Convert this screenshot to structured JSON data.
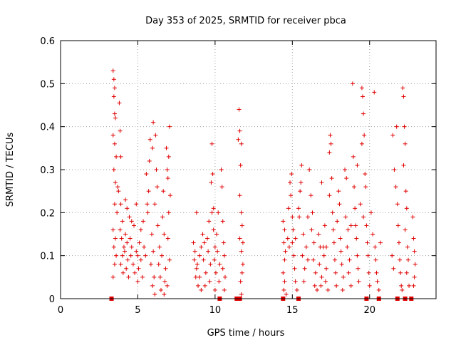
{
  "chart_data": {
    "type": "scatter",
    "title": "Day 353 of 2025, SRMTID for receiver pbca",
    "xlabel": "GPS time / hours",
    "ylabel": "SRMTID / TECUs",
    "xlim": [
      0,
      24.3
    ],
    "ylim": [
      0,
      0.6
    ],
    "x_ticks": [
      0,
      5,
      10,
      15,
      20
    ],
    "y_ticks": [
      0,
      0.1,
      0.2,
      0.3,
      0.4,
      0.5,
      0.6
    ],
    "x_tick_labels": [
      "0",
      "5",
      "10",
      "15",
      "20"
    ],
    "y_tick_labels": [
      "0",
      "0.1",
      "0.2",
      "0.3",
      "0.4",
      "0.5",
      "0.6"
    ],
    "grid": true,
    "legend": "none",
    "marker": "plus",
    "color": "#e00000",
    "series": [
      {
        "points": [
          [
            3.4,
            0.53
          ],
          [
            3.45,
            0.51
          ],
          [
            3.5,
            0.49
          ],
          [
            3.45,
            0.47
          ],
          [
            3.5,
            0.43
          ],
          [
            3.55,
            0.42
          ],
          [
            3.4,
            0.38
          ],
          [
            3.5,
            0.36
          ],
          [
            3.6,
            0.33
          ],
          [
            3.45,
            0.3
          ],
          [
            3.55,
            0.27
          ],
          [
            3.7,
            0.26
          ],
          [
            3.5,
            0.22
          ],
          [
            3.65,
            0.2
          ],
          [
            3.4,
            0.16
          ],
          [
            3.55,
            0.14
          ],
          [
            3.45,
            0.12
          ],
          [
            3.6,
            0.1
          ],
          [
            3.5,
            0.08
          ],
          [
            3.4,
            0.05
          ],
          [
            3.8,
            0.455
          ],
          [
            3.85,
            0.39
          ],
          [
            3.9,
            0.33
          ],
          [
            3.75,
            0.25
          ],
          [
            3.9,
            0.22
          ],
          [
            4.0,
            0.18
          ],
          [
            3.85,
            0.16
          ],
          [
            3.95,
            0.14
          ],
          [
            4.1,
            0.12
          ],
          [
            4.0,
            0.1
          ],
          [
            3.9,
            0.08
          ],
          [
            4.05,
            0.06
          ],
          [
            4.2,
            0.15
          ],
          [
            4.3,
            0.13
          ],
          [
            4.15,
            0.11
          ],
          [
            4.35,
            0.09
          ],
          [
            4.25,
            0.07
          ],
          [
            4.4,
            0.05
          ],
          [
            4.5,
            0.14
          ],
          [
            4.6,
            0.12
          ],
          [
            4.55,
            0.1
          ],
          [
            4.7,
            0.08
          ],
          [
            4.45,
            0.19
          ],
          [
            4.8,
            0.06
          ],
          [
            4.9,
            0.11
          ],
          [
            5.0,
            0.1
          ],
          [
            4.75,
            0.17
          ],
          [
            5.1,
            0.13
          ],
          [
            5.2,
            0.09
          ],
          [
            5.05,
            0.07
          ],
          [
            5.3,
            0.05
          ],
          [
            4.3,
            0.21
          ],
          [
            4.6,
            0.18
          ],
          [
            4.2,
            0.23
          ],
          [
            5.4,
            0.12
          ],
          [
            5.5,
            0.1
          ],
          [
            5.35,
            0.18
          ],
          [
            5.6,
            0.22
          ],
          [
            5.7,
            0.25
          ],
          [
            5.55,
            0.29
          ],
          [
            5.75,
            0.32
          ],
          [
            5.8,
            0.37
          ],
          [
            5.65,
            0.2
          ],
          [
            5.9,
            0.15
          ],
          [
            6.0,
            0.11
          ],
          [
            5.85,
            0.08
          ],
          [
            6.05,
            0.05
          ],
          [
            5.95,
            0.03
          ],
          [
            6.1,
            0.01
          ],
          [
            6.0,
            0.41
          ],
          [
            5.95,
            0.35
          ],
          [
            6.15,
            0.38
          ],
          [
            6.2,
            0.3
          ],
          [
            6.25,
            0.26
          ],
          [
            6.1,
            0.22
          ],
          [
            6.3,
            0.17
          ],
          [
            6.4,
            0.12
          ],
          [
            6.35,
            0.08
          ],
          [
            6.45,
            0.05
          ],
          [
            6.5,
            0.02
          ],
          [
            6.6,
            0.19
          ],
          [
            6.7,
            0.15
          ],
          [
            6.55,
            0.1
          ],
          [
            6.8,
            0.07
          ],
          [
            6.75,
            0.04
          ],
          [
            6.9,
            0.3
          ],
          [
            6.95,
            0.28
          ],
          [
            7.0,
            0.33
          ],
          [
            7.05,
            0.4
          ],
          [
            6.85,
            0.35
          ],
          [
            7.1,
            0.24
          ],
          [
            7.0,
            0.2
          ],
          [
            6.95,
            0.14
          ],
          [
            7.05,
            0.09
          ],
          [
            6.9,
            0.03
          ],
          [
            6.65,
            0.25
          ],
          [
            6.7,
            0.01
          ],
          [
            4.9,
            0.22
          ],
          [
            5.2,
            0.16
          ],
          [
            5.0,
            0.04
          ],
          [
            8.6,
            0.13
          ],
          [
            8.7,
            0.11
          ],
          [
            8.65,
            0.09
          ],
          [
            8.8,
            0.07
          ],
          [
            8.75,
            0.05
          ],
          [
            8.9,
            0.03
          ],
          [
            8.85,
            0.08
          ],
          [
            9.0,
            0.1
          ],
          [
            9.1,
            0.12
          ],
          [
            9.0,
            0.05
          ],
          [
            9.2,
            0.15
          ],
          [
            9.3,
            0.13
          ],
          [
            9.25,
            0.09
          ],
          [
            9.4,
            0.06
          ],
          [
            9.35,
            0.03
          ],
          [
            9.5,
            0.14
          ],
          [
            9.6,
            0.18
          ],
          [
            9.55,
            0.11
          ],
          [
            9.7,
            0.08
          ],
          [
            9.65,
            0.04
          ],
          [
            9.8,
            0.36
          ],
          [
            9.85,
            0.29
          ],
          [
            9.75,
            0.27
          ],
          [
            9.9,
            0.21
          ],
          [
            9.8,
            0.2
          ],
          [
            9.9,
            0.16
          ],
          [
            10.0,
            0.12
          ],
          [
            9.95,
            0.09
          ],
          [
            10.05,
            0.06
          ],
          [
            10.0,
            0.02
          ],
          [
            10.1,
            0.15
          ],
          [
            10.2,
            0.2
          ],
          [
            10.15,
            0.11
          ],
          [
            10.3,
            0.08
          ],
          [
            10.25,
            0.04
          ],
          [
            10.4,
            0.3
          ],
          [
            10.45,
            0.26
          ],
          [
            10.5,
            0.18
          ],
          [
            10.55,
            0.13
          ],
          [
            10.6,
            0.1
          ],
          [
            10.5,
            0.07
          ],
          [
            10.65,
            0.05
          ],
          [
            10.6,
            0.02
          ],
          [
            8.8,
            0.2
          ],
          [
            9.1,
            0.02
          ],
          [
            11.55,
            0.44
          ],
          [
            11.6,
            0.39
          ],
          [
            11.5,
            0.37
          ],
          [
            11.7,
            0.36
          ],
          [
            11.65,
            0.31
          ],
          [
            11.6,
            0.24
          ],
          [
            11.7,
            0.2
          ],
          [
            11.75,
            0.17
          ],
          [
            11.6,
            0.14
          ],
          [
            11.7,
            0.11
          ],
          [
            11.8,
            0.08
          ],
          [
            11.75,
            0.06
          ],
          [
            11.65,
            0.04
          ],
          [
            11.7,
            0.01
          ],
          [
            11.8,
            0.13
          ],
          [
            14.4,
            0.18
          ],
          [
            14.5,
            0.16
          ],
          [
            14.45,
            0.13
          ],
          [
            14.55,
            0.11
          ],
          [
            14.5,
            0.09
          ],
          [
            14.4,
            0.06
          ],
          [
            14.5,
            0.04
          ],
          [
            14.45,
            0.02
          ],
          [
            14.6,
            0.01
          ],
          [
            14.7,
            0.14
          ],
          [
            14.8,
            0.12
          ],
          [
            14.75,
            0.21
          ],
          [
            14.9,
            0.24
          ],
          [
            14.85,
            0.27
          ],
          [
            14.95,
            0.29
          ],
          [
            15.0,
            0.19
          ],
          [
            15.05,
            0.16
          ],
          [
            15.0,
            0.13
          ],
          [
            15.1,
            0.1
          ],
          [
            15.15,
            0.07
          ],
          [
            15.2,
            0.04
          ],
          [
            15.3,
            0.02
          ],
          [
            15.4,
            0.21
          ],
          [
            15.5,
            0.25
          ],
          [
            15.55,
            0.27
          ],
          [
            15.6,
            0.31
          ],
          [
            15.45,
            0.19
          ],
          [
            15.7,
            0.15
          ],
          [
            15.65,
            0.1
          ],
          [
            15.8,
            0.07
          ],
          [
            15.75,
            0.04
          ],
          [
            15.9,
            0.12
          ],
          [
            16.0,
            0.09
          ],
          [
            16.1,
            0.3
          ],
          [
            16.2,
            0.24
          ],
          [
            16.3,
            0.2
          ],
          [
            16.25,
            0.16
          ],
          [
            16.4,
            0.13
          ],
          [
            16.35,
            0.09
          ],
          [
            16.5,
            0.06
          ],
          [
            16.45,
            0.03
          ],
          [
            16.6,
            0.02
          ],
          [
            16.7,
            0.15
          ],
          [
            16.8,
            0.12
          ],
          [
            16.75,
            0.08
          ],
          [
            16.9,
            0.05
          ],
          [
            16.85,
            0.03
          ],
          [
            17.0,
            0.12
          ],
          [
            17.1,
            0.17
          ],
          [
            17.05,
            0.1
          ],
          [
            17.2,
            0.07
          ],
          [
            17.15,
            0.04
          ],
          [
            17.3,
            0.02
          ],
          [
            17.4,
            0.34
          ],
          [
            17.45,
            0.38
          ],
          [
            17.5,
            0.36
          ],
          [
            17.55,
            0.28
          ],
          [
            17.4,
            0.24
          ],
          [
            17.6,
            0.2
          ],
          [
            17.65,
            0.16
          ],
          [
            17.7,
            0.13
          ],
          [
            17.75,
            0.09
          ],
          [
            17.8,
            0.06
          ],
          [
            17.85,
            0.03
          ],
          [
            17.9,
            0.18
          ],
          [
            18.0,
            0.25
          ],
          [
            18.05,
            0.22
          ],
          [
            18.1,
            0.14
          ],
          [
            18.15,
            0.11
          ],
          [
            18.2,
            0.08
          ],
          [
            18.3,
            0.05
          ],
          [
            18.25,
            0.02
          ],
          [
            18.4,
            0.3
          ],
          [
            18.5,
            0.28
          ],
          [
            18.45,
            0.19
          ],
          [
            18.6,
            0.16
          ],
          [
            18.55,
            0.12
          ],
          [
            18.7,
            0.09
          ],
          [
            18.65,
            0.06
          ],
          [
            18.8,
            0.03
          ],
          [
            18.9,
            0.5
          ],
          [
            18.95,
            0.33
          ],
          [
            19.0,
            0.26
          ],
          [
            19.05,
            0.21
          ],
          [
            19.1,
            0.17
          ],
          [
            19.15,
            0.14
          ],
          [
            19.2,
            0.1
          ],
          [
            19.25,
            0.07
          ],
          [
            19.3,
            0.04
          ],
          [
            19.4,
            0.22
          ],
          [
            19.5,
            0.49
          ],
          [
            19.55,
            0.47
          ],
          [
            19.6,
            0.43
          ],
          [
            19.65,
            0.38
          ],
          [
            19.5,
            0.36
          ],
          [
            19.7,
            0.29
          ],
          [
            19.75,
            0.26
          ],
          [
            19.6,
            0.19
          ],
          [
            19.8,
            0.17
          ],
          [
            19.85,
            0.13
          ],
          [
            19.9,
            0.1
          ],
          [
            19.95,
            0.06
          ],
          [
            20.0,
            0.03
          ],
          [
            20.1,
            0.2
          ],
          [
            20.2,
            0.15
          ],
          [
            20.3,
            0.48
          ],
          [
            20.35,
            0.12
          ],
          [
            20.4,
            0.09
          ],
          [
            20.45,
            0.06
          ],
          [
            20.5,
            0.04
          ],
          [
            20.6,
            0.02
          ],
          [
            20.7,
            0.13
          ],
          [
            21.7,
            0.26
          ],
          [
            21.75,
            0.4
          ],
          [
            21.8,
            0.22
          ],
          [
            21.85,
            0.17
          ],
          [
            21.9,
            0.13
          ],
          [
            21.95,
            0.09
          ],
          [
            22.0,
            0.06
          ],
          [
            22.05,
            0.03
          ],
          [
            22.1,
            0.02
          ],
          [
            22.15,
            0.49
          ],
          [
            22.2,
            0.47
          ],
          [
            22.25,
            0.4
          ],
          [
            22.3,
            0.36
          ],
          [
            22.2,
            0.31
          ],
          [
            22.35,
            0.25
          ],
          [
            22.4,
            0.21
          ],
          [
            22.3,
            0.16
          ],
          [
            22.45,
            0.12
          ],
          [
            22.5,
            0.09
          ],
          [
            22.4,
            0.06
          ],
          [
            22.55,
            0.03
          ],
          [
            22.8,
            0.19
          ],
          [
            22.85,
            0.14
          ],
          [
            22.9,
            0.11
          ],
          [
            22.95,
            0.08
          ],
          [
            22.9,
            0.05
          ],
          [
            22.85,
            0.03
          ],
          [
            21.5,
            0.38
          ],
          [
            21.6,
            0.3
          ],
          [
            21.45,
            0.1
          ],
          [
            21.55,
            0.07
          ],
          [
            16.0,
            0.19
          ],
          [
            19.2,
            0.31
          ],
          [
            17.2,
            0.12
          ],
          [
            18.8,
            0.17
          ],
          [
            16.9,
            0.27
          ],
          [
            15.2,
            0.14
          ]
        ]
      }
    ],
    "zero_markers_x": [
      3.3,
      10.3,
      11.4,
      11.6,
      14.4,
      15.4,
      19.8,
      20.6,
      21.8,
      22.3,
      22.7
    ]
  }
}
